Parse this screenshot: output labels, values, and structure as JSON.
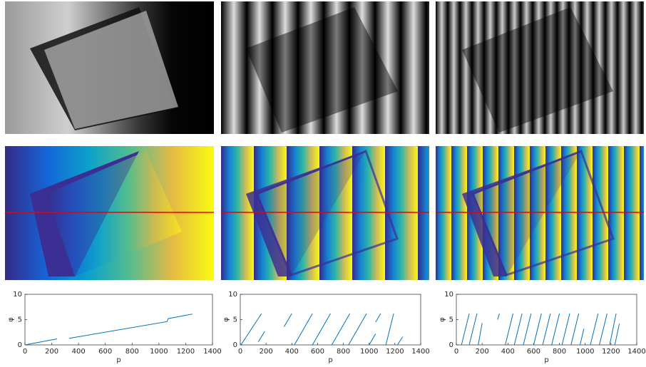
{
  "chart_data": [
    {
      "type": "line",
      "xlabel": "p",
      "ylabel": "φ",
      "xlim": [
        0,
        1400
      ],
      "ylim": [
        0,
        10
      ],
      "xticks": [
        0,
        200,
        400,
        600,
        800,
        1000,
        1200,
        1400
      ],
      "yticks": [
        0,
        5,
        10
      ],
      "x": [
        0,
        240,
        null,
        330,
        1060,
        1070,
        1250
      ],
      "series": [
        {
          "color": "#0072bd",
          "values": [
            0,
            1.2,
            null,
            1.3,
            4.6,
            5.2,
            6.1
          ]
        }
      ]
    },
    {
      "type": "line",
      "xlabel": "p",
      "ylabel": "φ",
      "xlim": [
        0,
        1400
      ],
      "ylim": [
        0,
        10
      ],
      "xticks": [
        0,
        200,
        400,
        600,
        800,
        1000,
        1200,
        1400
      ],
      "yticks": [
        0,
        5,
        10
      ],
      "x": [
        5,
        165,
        null,
        140,
        190,
        null,
        340,
        400,
        null,
        420,
        560,
        null,
        560,
        700,
        null,
        710,
        850,
        null,
        840,
        980,
        null,
        1000,
        1050,
        null,
        1050,
        1090,
        null,
        1130,
        1190,
        null,
        1220,
        1260
      ],
      "series": [
        {
          "color": "#0072bd",
          "values": [
            0,
            6.2,
            null,
            0.6,
            2.7,
            null,
            3.6,
            6.2,
            null,
            0,
            6.2,
            null,
            0,
            6.2,
            null,
            0,
            6.2,
            null,
            0,
            6.2,
            null,
            0,
            2.2,
            null,
            4.5,
            6.2,
            null,
            0,
            6.2,
            null,
            0,
            1.6
          ]
        }
      ]
    },
    {
      "type": "line",
      "xlabel": "p",
      "ylabel": "φ",
      "xlim": [
        0,
        1400
      ],
      "ylim": [
        0,
        10
      ],
      "xticks": [
        0,
        200,
        400,
        600,
        800,
        1000,
        1200,
        1400
      ],
      "yticks": [
        0,
        5,
        10
      ],
      "x": [
        40,
        100,
        null,
        100,
        160,
        null,
        170,
        200,
        null,
        320,
        335,
        null,
        380,
        440,
        null,
        450,
        510,
        null,
        520,
        580,
        null,
        600,
        660,
        null,
        670,
        730,
        null,
        740,
        800,
        null,
        820,
        880,
        null,
        890,
        950,
        null,
        960,
        990,
        null,
        1040,
        1100,
        null,
        1110,
        1170,
        null,
        1190,
        1240,
        null,
        1230,
        1265
      ],
      "series": [
        {
          "color": "#0072bd",
          "values": [
            0,
            6.2,
            null,
            0,
            6.2,
            null,
            0,
            4.3,
            null,
            5.0,
            6.2,
            null,
            0,
            6.2,
            null,
            0,
            6.2,
            null,
            0,
            6.2,
            null,
            0,
            6.2,
            null,
            0,
            6.2,
            null,
            0,
            6.2,
            null,
            0,
            6.2,
            null,
            0,
            6.2,
            null,
            0,
            3.2,
            null,
            0,
            6.2,
            null,
            0,
            6.2,
            null,
            0,
            6.2,
            null,
            0,
            4.2
          ]
        }
      ]
    }
  ]
}
